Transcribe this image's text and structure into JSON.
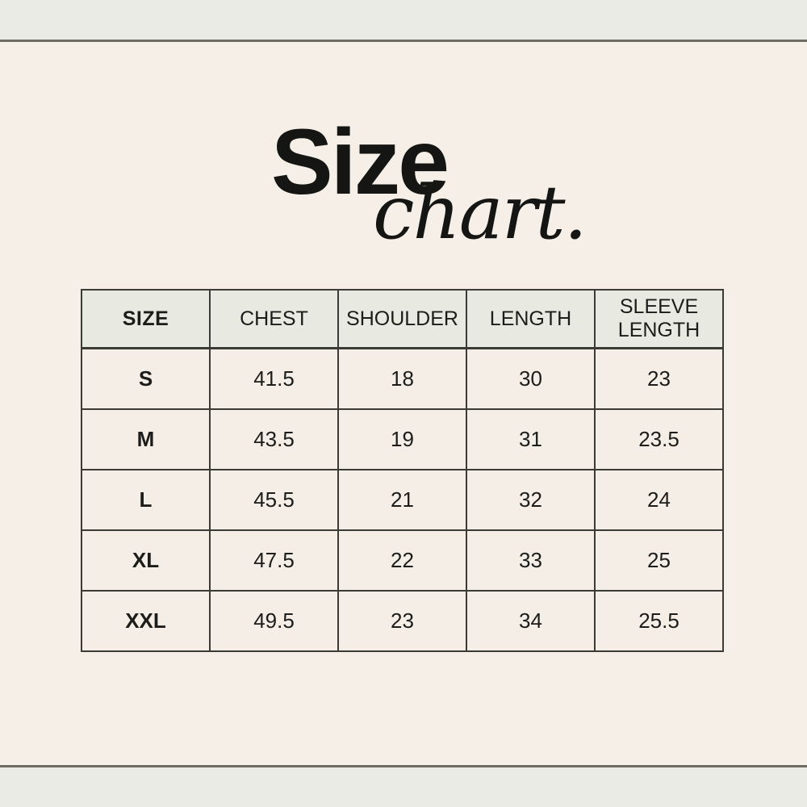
{
  "page": {
    "background_color": "#f5efe7",
    "band_color": "#e9ebe4",
    "divider_color": "#6f6d60",
    "table_border_color": "#3b3a34",
    "table_header_bg": "#e8eae2",
    "text_color": "#151513"
  },
  "title": {
    "main": "Size",
    "script": "chart."
  },
  "table": {
    "columns": [
      "SIZE",
      "CHEST",
      "SHOULDER",
      "LENGTH",
      "SLEEVE LENGTH"
    ],
    "rows": [
      {
        "size": "S",
        "values": [
          "41.5",
          "18",
          "30",
          "23"
        ]
      },
      {
        "size": "M",
        "values": [
          "43.5",
          "19",
          "31",
          "23.5"
        ]
      },
      {
        "size": "L",
        "values": [
          "45.5",
          "21",
          "32",
          "24"
        ]
      },
      {
        "size": "XL",
        "values": [
          "47.5",
          "22",
          "33",
          "25"
        ]
      },
      {
        "size": "XXL",
        "values": [
          "49.5",
          "23",
          "34",
          "25.5"
        ]
      }
    ]
  }
}
